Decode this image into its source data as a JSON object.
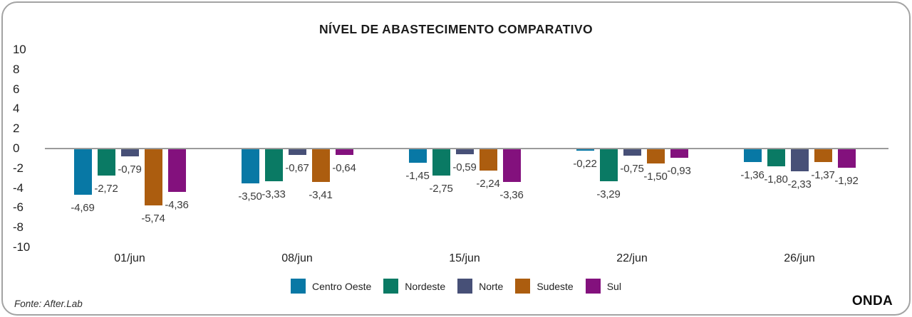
{
  "title": "NÍVEL DE ABASTECIMENTO COMPARATIVO",
  "footer": {
    "source": "Fonte: After.Lab",
    "brand": "ONDA"
  },
  "chart_data": {
    "type": "bar",
    "title": "NÍVEL DE ABASTECIMENTO COMPARATIVO",
    "categories": [
      "01/jun",
      "08/jun",
      "15/jun",
      "22/jun",
      "26/jun"
    ],
    "series": [
      {
        "name": "Centro Oeste",
        "color": "#0878A5",
        "values": [
          -4.69,
          -3.5,
          -1.45,
          -0.22,
          -1.36
        ],
        "labels": [
          "-4,69",
          "-3,50",
          "-1,45",
          "-0,22",
          "-1,36"
        ]
      },
      {
        "name": "Nordeste",
        "color": "#0A7A64",
        "values": [
          -2.72,
          -3.33,
          -2.75,
          -3.29,
          -1.8
        ],
        "labels": [
          "-2,72",
          "-3,33",
          "-2,75",
          "-3,29",
          "-1,80"
        ]
      },
      {
        "name": "Norte",
        "color": "#475077",
        "values": [
          -0.79,
          -0.67,
          -0.59,
          -0.75,
          -2.33
        ],
        "labels": [
          "-0,79",
          "-0,67",
          "-0,59",
          "-0,75",
          "-2,33"
        ]
      },
      {
        "name": "Sudeste",
        "color": "#AC5D0F",
        "values": [
          -5.74,
          -3.41,
          -2.24,
          -1.5,
          -1.37
        ],
        "labels": [
          "-5,74",
          "-3,41",
          "-2,24",
          "-1,50",
          "-1,37"
        ]
      },
      {
        "name": "Sul",
        "color": "#83117D",
        "values": [
          -4.36,
          -0.64,
          -3.36,
          -0.93,
          -1.92
        ],
        "labels": [
          "-4,36",
          "-0,64",
          "-3,36",
          "-0,93",
          "-1,92"
        ]
      }
    ],
    "yticks": [
      10,
      8,
      6,
      4,
      2,
      0,
      -2,
      -4,
      -6,
      -8,
      -10
    ],
    "ytick_labels": [
      "10",
      "8",
      "6",
      "4",
      "2",
      "0",
      "-2",
      "-4",
      "-6",
      "-8",
      "-10"
    ],
    "ylim": [
      -10,
      10
    ],
    "grid": false,
    "legend_position": "bottom",
    "value_label_decimal_separator": ","
  }
}
